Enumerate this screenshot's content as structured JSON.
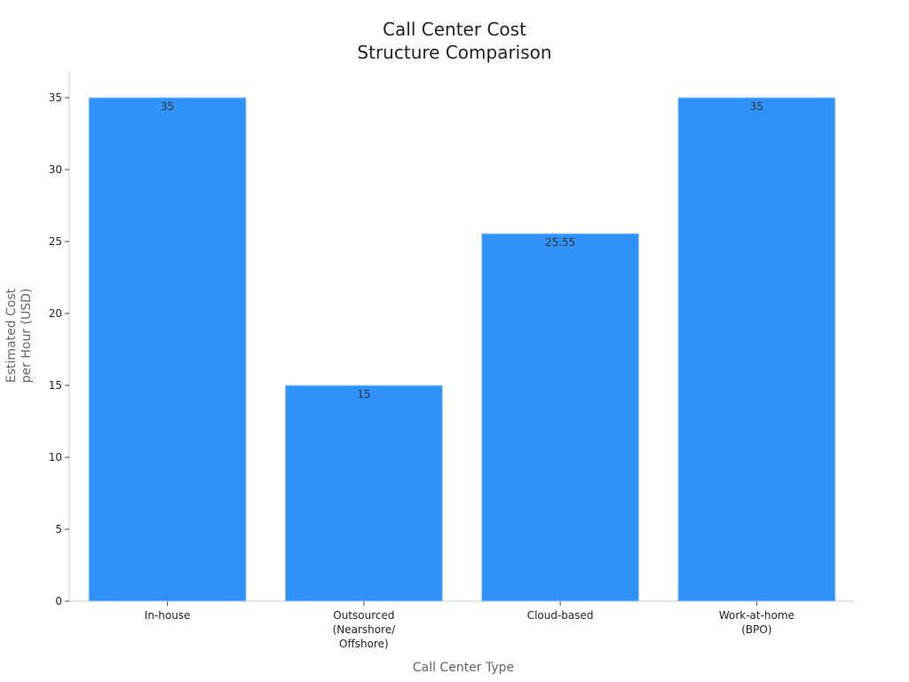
{
  "chart_data": {
    "type": "bar",
    "title": "Call Center Cost\nStructure Comparison",
    "categories": [
      "In-house",
      "Outsourced\n(Nearshore/\nOffshore)",
      "Cloud-based",
      "Work-at-home\n(BPO)"
    ],
    "values": [
      35,
      15,
      25.55,
      35
    ],
    "color": "#2f92f8",
    "xlabel": "Call Center Type",
    "ylabel": "Estimated Cost\nper Hour (USD)",
    "ylim": [
      0,
      36.85
    ],
    "yticks": [
      0,
      5,
      10,
      15,
      20,
      25,
      30,
      35
    ],
    "grid": false
  }
}
